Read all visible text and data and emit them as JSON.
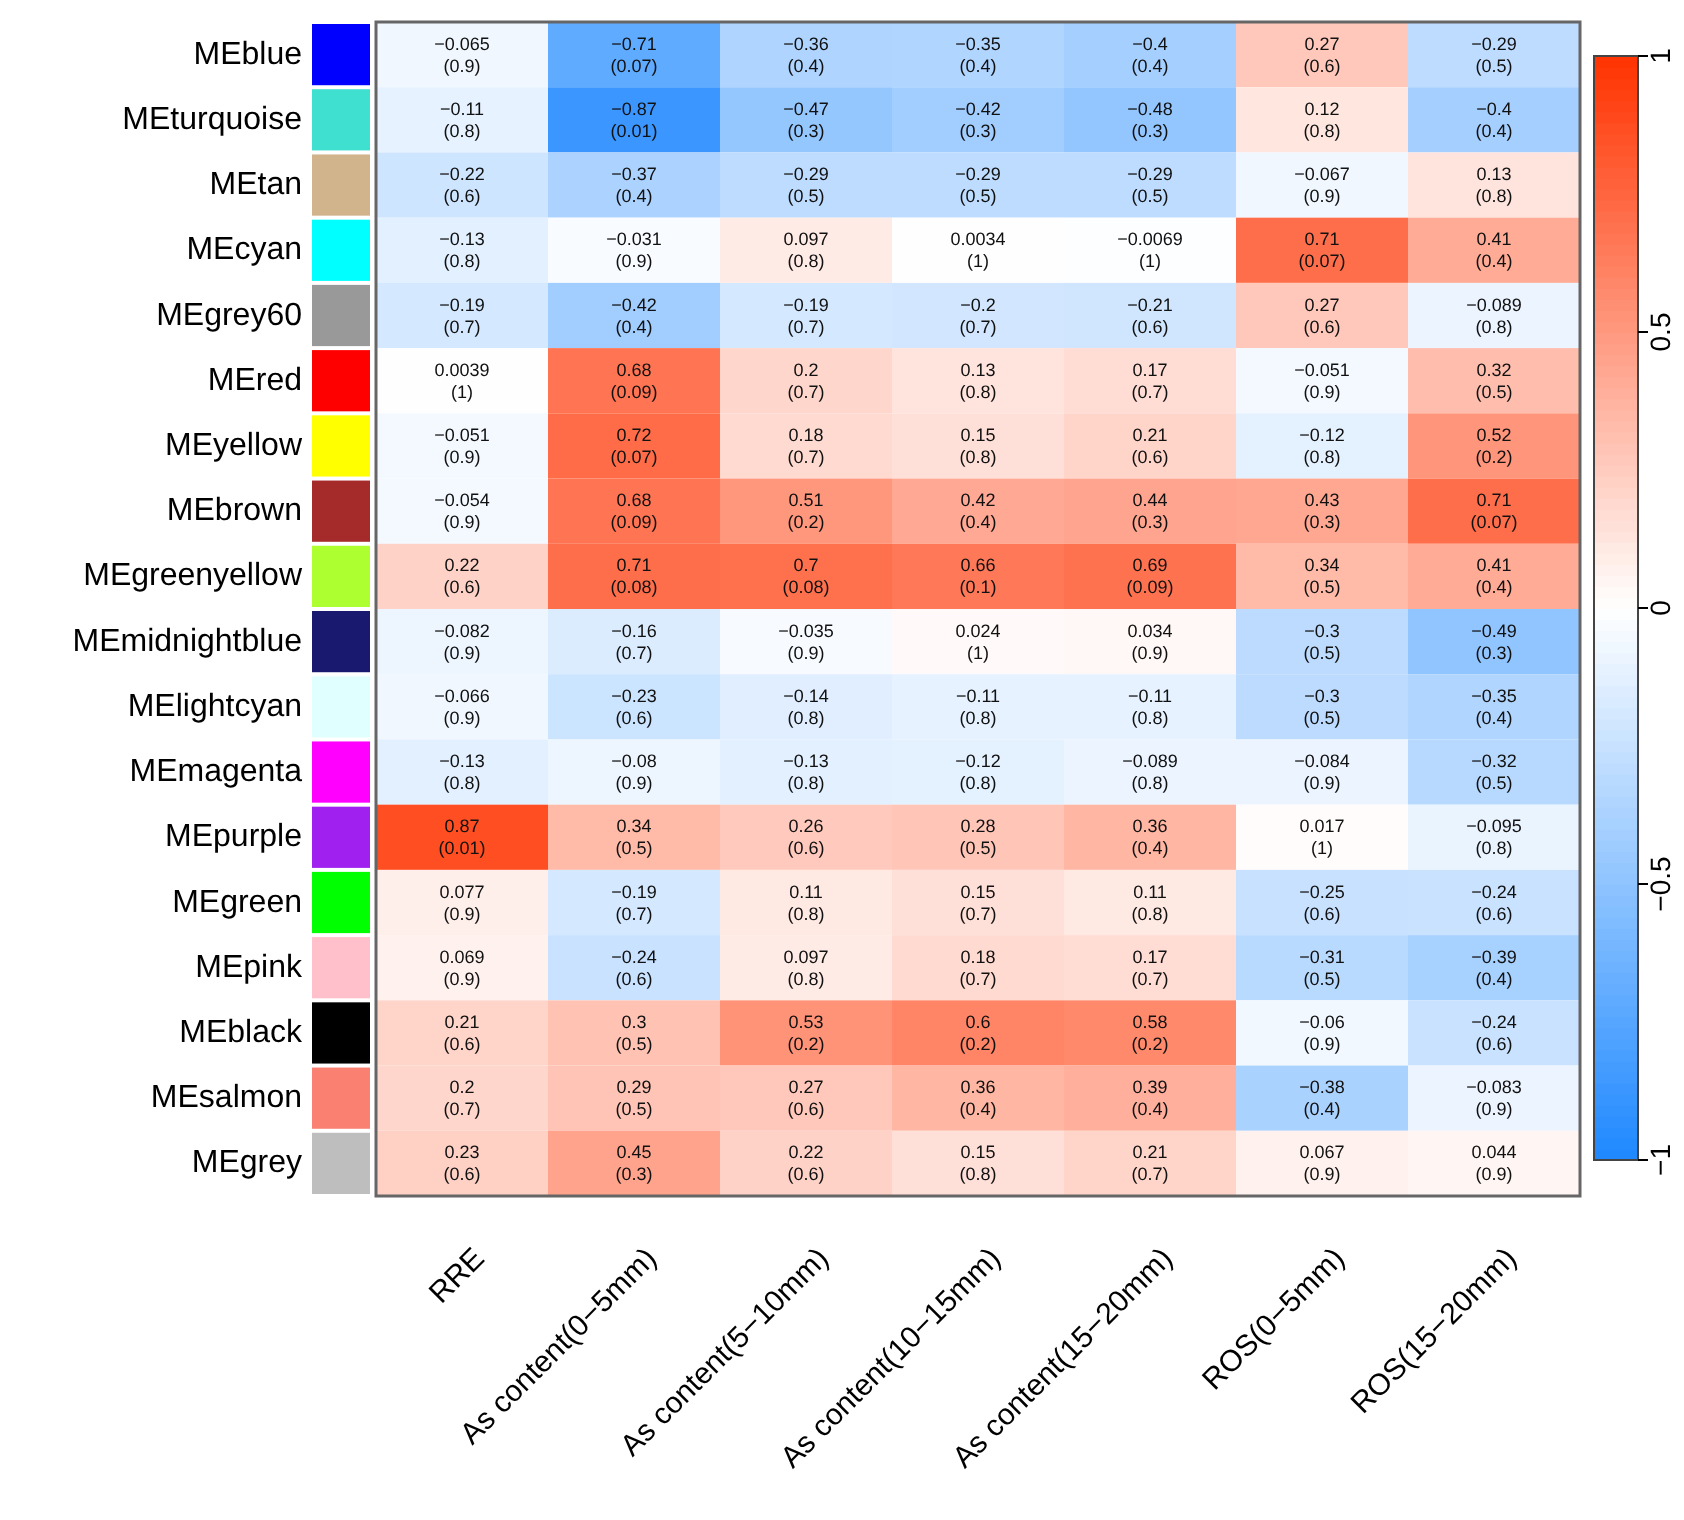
{
  "chart_data": {
    "type": "heatmap",
    "categories": [
      "RRE",
      "As content(0−5mm)",
      "As content(5−10mm)",
      "As content(10−15mm)",
      "As content(15−20mm)",
      "ROS(0−5mm)",
      "ROS(15−20mm)"
    ],
    "y_categories": [
      "MEblue",
      "MEturquoise",
      "MEtan",
      "MEcyan",
      "MEgrey60",
      "MEred",
      "MEyellow",
      "MEbrown",
      "MEgreenyellow",
      "MEmidnightblue",
      "MElightcyan",
      "MEmagenta",
      "MEpurple",
      "MEgreen",
      "MEpink",
      "MEblack",
      "MEsalmon",
      "MEgrey"
    ],
    "cells": [
      [
        -0.065,
        -0.71,
        -0.36,
        -0.35,
        -0.4,
        0.27,
        -0.29
      ],
      [
        -0.11,
        -0.87,
        -0.47,
        -0.42,
        -0.48,
        0.12,
        -0.4
      ],
      [
        -0.22,
        -0.37,
        -0.29,
        -0.29,
        -0.29,
        -0.067,
        0.13
      ],
      [
        -0.13,
        -0.031,
        0.097,
        0.0034,
        -0.0069,
        0.71,
        0.41
      ],
      [
        -0.19,
        -0.42,
        -0.19,
        -0.2,
        -0.21,
        0.27,
        -0.089
      ],
      [
        0.0039,
        0.68,
        0.2,
        0.13,
        0.17,
        -0.051,
        0.32
      ],
      [
        -0.051,
        0.72,
        0.18,
        0.15,
        0.21,
        -0.12,
        0.52
      ],
      [
        -0.054,
        0.68,
        0.51,
        0.42,
        0.44,
        0.43,
        0.71
      ],
      [
        0.22,
        0.71,
        0.7,
        0.66,
        0.69,
        0.34,
        0.41
      ],
      [
        -0.082,
        -0.16,
        -0.035,
        0.024,
        0.034,
        -0.3,
        -0.49
      ],
      [
        -0.066,
        -0.23,
        -0.14,
        -0.11,
        -0.11,
        -0.3,
        -0.35
      ],
      [
        -0.13,
        -0.08,
        -0.13,
        -0.12,
        -0.089,
        -0.084,
        -0.32
      ],
      [
        0.87,
        0.34,
        0.26,
        0.28,
        0.36,
        0.017,
        -0.095
      ],
      [
        0.077,
        -0.19,
        0.11,
        0.15,
        0.11,
        -0.25,
        -0.24
      ],
      [
        0.069,
        -0.24,
        0.097,
        0.18,
        0.17,
        -0.31,
        -0.39
      ],
      [
        0.21,
        0.3,
        0.53,
        0.6,
        0.58,
        -0.06,
        -0.24
      ],
      [
        0.2,
        0.29,
        0.27,
        0.36,
        0.39,
        -0.38,
        -0.083
      ],
      [
        0.23,
        0.45,
        0.22,
        0.15,
        0.21,
        0.067,
        0.044
      ]
    ],
    "cell_labels": [
      [
        "−0.065\n(0.9)",
        "−0.71\n(0.07)",
        "−0.36\n(0.4)",
        "−0.35\n(0.4)",
        "−0.4\n(0.4)",
        "0.27\n(0.6)",
        "−0.29\n(0.5)"
      ],
      [
        "−0.11\n(0.8)",
        "−0.87\n(0.01)",
        "−0.47\n(0.3)",
        "−0.42\n(0.3)",
        "−0.48\n(0.3)",
        "0.12\n(0.8)",
        "−0.4\n(0.4)"
      ],
      [
        "−0.22\n(0.6)",
        "−0.37\n(0.4)",
        "−0.29\n(0.5)",
        "−0.29\n(0.5)",
        "−0.29\n(0.5)",
        "−0.067\n(0.9)",
        "0.13\n(0.8)"
      ],
      [
        "−0.13\n(0.8)",
        "−0.031\n(0.9)",
        "0.097\n(0.8)",
        "0.0034\n(1)",
        "−0.0069\n(1)",
        "0.71\n(0.07)",
        "0.41\n(0.4)"
      ],
      [
        "−0.19\n(0.7)",
        "−0.42\n(0.4)",
        "−0.19\n(0.7)",
        "−0.2\n(0.7)",
        "−0.21\n(0.6)",
        "0.27\n(0.6)",
        "−0.089\n(0.8)"
      ],
      [
        "0.0039\n(1)",
        "0.68\n(0.09)",
        "0.2\n(0.7)",
        "0.13\n(0.8)",
        "0.17\n(0.7)",
        "−0.051\n(0.9)",
        "0.32\n(0.5)"
      ],
      [
        "−0.051\n(0.9)",
        "0.72\n(0.07)",
        "0.18\n(0.7)",
        "0.15\n(0.8)",
        "0.21\n(0.6)",
        "−0.12\n(0.8)",
        "0.52\n(0.2)"
      ],
      [
        "−0.054\n(0.9)",
        "0.68\n(0.09)",
        "0.51\n(0.2)",
        "0.42\n(0.4)",
        "0.44\n(0.3)",
        "0.43\n(0.3)",
        "0.71\n(0.07)"
      ],
      [
        "0.22\n(0.6)",
        "0.71\n(0.08)",
        "0.7\n(0.08)",
        "0.66\n(0.1)",
        "0.69\n(0.09)",
        "0.34\n(0.5)",
        "0.41\n(0.4)"
      ],
      [
        "−0.082\n(0.9)",
        "−0.16\n(0.7)",
        "−0.035\n(0.9)",
        "0.024\n(1)",
        "0.034\n(0.9)",
        "−0.3\n(0.5)",
        "−0.49\n(0.3)"
      ],
      [
        "−0.066\n(0.9)",
        "−0.23\n(0.6)",
        "−0.14\n(0.8)",
        "−0.11\n(0.8)",
        "−0.11\n(0.8)",
        "−0.3\n(0.5)",
        "−0.35\n(0.4)"
      ],
      [
        "−0.13\n(0.8)",
        "−0.08\n(0.9)",
        "−0.13\n(0.8)",
        "−0.12\n(0.8)",
        "−0.089\n(0.8)",
        "−0.084\n(0.9)",
        "−0.32\n(0.5)"
      ],
      [
        "0.87\n(0.01)",
        "0.34\n(0.5)",
        "0.26\n(0.6)",
        "0.28\n(0.5)",
        "0.36\n(0.4)",
        "0.017\n(1)",
        "−0.095\n(0.8)"
      ],
      [
        "0.077\n(0.9)",
        "−0.19\n(0.7)",
        "0.11\n(0.8)",
        "0.15\n(0.7)",
        "0.11\n(0.8)",
        "−0.25\n(0.6)",
        "−0.24\n(0.6)"
      ],
      [
        "0.069\n(0.9)",
        "−0.24\n(0.6)",
        "0.097\n(0.8)",
        "0.18\n(0.7)",
        "0.17\n(0.7)",
        "−0.31\n(0.5)",
        "−0.39\n(0.4)"
      ],
      [
        "0.21\n(0.6)",
        "0.3\n(0.5)",
        "0.53\n(0.2)",
        "0.6\n(0.2)",
        "0.58\n(0.2)",
        "−0.06\n(0.9)",
        "−0.24\n(0.6)"
      ],
      [
        "0.2\n(0.7)",
        "0.29\n(0.5)",
        "0.27\n(0.6)",
        "0.36\n(0.4)",
        "0.39\n(0.4)",
        "−0.38\n(0.4)",
        "−0.083\n(0.9)"
      ],
      [
        "0.23\n(0.6)",
        "0.45\n(0.3)",
        "0.22\n(0.6)",
        "0.15\n(0.8)",
        "0.21\n(0.7)",
        "0.067\n(0.9)",
        "0.044\n(0.9)"
      ]
    ],
    "clim": [
      -1,
      1
    ],
    "cticks": [
      {
        "value": -1,
        "label": "−1"
      },
      {
        "value": -0.5,
        "label": "−0.5"
      },
      0,
      0.5,
      1
    ]
  }
}
